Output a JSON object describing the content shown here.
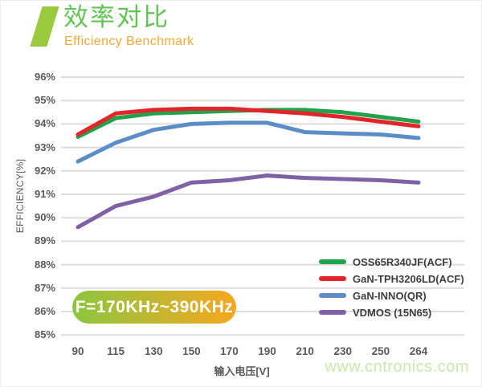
{
  "header": {
    "title": "效率对比",
    "subtitle": "Efficiency Benchmark"
  },
  "badge": {
    "label": "F=170KHz~390KHz"
  },
  "watermark": "www.cntronics.com",
  "chart_data": {
    "type": "line",
    "title": "效率对比 (Efficiency Benchmark)",
    "categories": [
      "90",
      "115",
      "130",
      "150",
      "170",
      "190",
      "210",
      "230",
      "250",
      "264"
    ],
    "series": [
      {
        "name": "OSS65R340JF(ACF)",
        "color": "#21a24b",
        "values": [
          93.45,
          94.25,
          94.45,
          94.5,
          94.55,
          94.6,
          94.6,
          94.5,
          94.3,
          94.1
        ]
      },
      {
        "name": "GaN-TPH3206LD(ACF)",
        "color": "#e2242b",
        "values": [
          93.55,
          94.45,
          94.6,
          94.65,
          94.65,
          94.55,
          94.45,
          94.3,
          94.1,
          93.9
        ]
      },
      {
        "name": "GaN-INNO(QR)",
        "color": "#5b8dc8",
        "values": [
          92.4,
          93.2,
          93.75,
          94.0,
          94.05,
          94.05,
          93.65,
          93.6,
          93.55,
          93.4
        ]
      },
      {
        "name": "VDMOS (15N65)",
        "color": "#7e62a5",
        "values": [
          89.6,
          90.5,
          90.9,
          91.5,
          91.6,
          91.8,
          91.7,
          91.65,
          91.6,
          91.5
        ]
      }
    ],
    "xlabel": "输入电压[V]",
    "ylabel": "EFFICIENCY[%]",
    "y_ticks": [
      "96%",
      "95%",
      "94%",
      "93%",
      "92%",
      "91%",
      "90%",
      "89%",
      "88%",
      "87%",
      "86%",
      "85%"
    ],
    "ylim": [
      85,
      96
    ],
    "grid": true,
    "gridline_color": "#dcdcdc",
    "legend_position": "inside-right",
    "annotation": "F=170KHz~390KHz"
  },
  "colors": {
    "header_slash": "#9aca3e",
    "header_title": "#63c453",
    "header_subtitle": "#f7a832",
    "badge_gradient_start": "#8dc63f",
    "badge_gradient_end": "#f5a71f",
    "tick_text": "#595959",
    "watermark": "#cde7ac"
  }
}
